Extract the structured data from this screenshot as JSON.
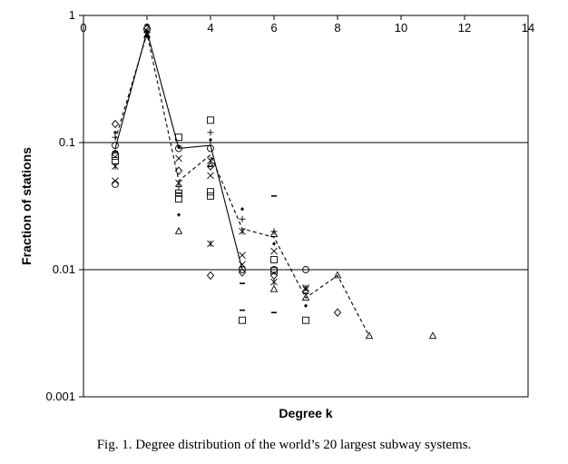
{
  "chart_data": {
    "type": "scatter",
    "xlabel": "Degree k",
    "ylabel": "Fraction of stations",
    "xlim": [
      0,
      14
    ],
    "ylim": [
      0.001,
      1
    ],
    "y_scale": "log",
    "x_ticks": [
      "0",
      "2",
      "4",
      "6",
      "8",
      "10",
      "12",
      "14"
    ],
    "y_ticks": [
      "1",
      "0.1",
      "0.01",
      "0.001"
    ],
    "y_tick_values": [
      1,
      0.1,
      0.01,
      0.001
    ],
    "horizontal_gridlines": [
      0.1,
      0.01
    ],
    "series": [
      {
        "marker": "line-solid",
        "x": [
          1,
          2,
          3,
          4,
          5,
          6,
          7
        ],
        "y": [
          0.09,
          0.75,
          0.09,
          0.095,
          0.01,
          0.01,
          0.01
        ]
      },
      {
        "marker": "line-dashed",
        "x": [
          1,
          2,
          3,
          4,
          5,
          6,
          7,
          8,
          9
        ],
        "y": [
          0.105,
          0.72,
          0.05,
          0.08,
          0.021,
          0.018,
          0.006,
          0.009,
          0.003
        ]
      },
      {
        "marker": "triangle",
        "x": [
          3,
          6,
          6,
          7,
          8,
          9,
          11
        ],
        "y": [
          0.02,
          0.007,
          0.019,
          0.006,
          0.009,
          0.003,
          0.003
        ]
      },
      {
        "marker": "square",
        "x": [
          1,
          1,
          3,
          3,
          3,
          4,
          4,
          4,
          5,
          6,
          6,
          7
        ],
        "y": [
          0.078,
          0.072,
          0.11,
          0.04,
          0.036,
          0.15,
          0.041,
          0.038,
          0.004,
          0.012,
          0.0098,
          0.004
        ]
      },
      {
        "marker": "diamond",
        "x": [
          1,
          1,
          2,
          3,
          4,
          4,
          5,
          6,
          8
        ],
        "y": [
          0.14,
          0.082,
          0.8,
          0.06,
          0.009,
          0.065,
          0.0095,
          0.009,
          0.0046
        ]
      },
      {
        "marker": "circle",
        "x": [
          1,
          1,
          2,
          3,
          4,
          5,
          6,
          7
        ],
        "y": [
          0.047,
          0.095,
          0.78,
          0.09,
          0.09,
          0.01,
          0.01,
          0.01
        ]
      },
      {
        "marker": "cross",
        "x": [
          1,
          2,
          3,
          4,
          5,
          5,
          6,
          7
        ],
        "y": [
          0.05,
          0.72,
          0.075,
          0.055,
          0.013,
          0.011,
          0.014,
          0.007
        ]
      },
      {
        "marker": "asterisk",
        "x": [
          1,
          2,
          3,
          4,
          4,
          5,
          6,
          7
        ],
        "y": [
          0.065,
          0.7,
          0.048,
          0.072,
          0.016,
          0.02,
          0.008,
          0.0072
        ]
      },
      {
        "marker": "plus",
        "x": [
          1,
          2,
          3,
          4,
          4,
          5,
          6
        ],
        "y": [
          0.11,
          0.74,
          0.045,
          0.12,
          0.1,
          0.025,
          0.02
        ]
      },
      {
        "marker": "dot",
        "x": [
          1,
          2,
          3,
          3,
          4,
          5,
          6,
          7
        ],
        "y": [
          0.12,
          0.7,
          0.027,
          0.092,
          0.105,
          0.03,
          0.016,
          0.0052
        ]
      },
      {
        "marker": "dash",
        "x": [
          1,
          2,
          3,
          4,
          5,
          5,
          6,
          6,
          7
        ],
        "y": [
          0.085,
          0.68,
          0.04,
          0.065,
          0.0078,
          0.0048,
          0.038,
          0.0046,
          0.0065
        ]
      }
    ]
  },
  "caption": "Fig. 1.  Degree distribution of the world’s 20 largest subway systems."
}
